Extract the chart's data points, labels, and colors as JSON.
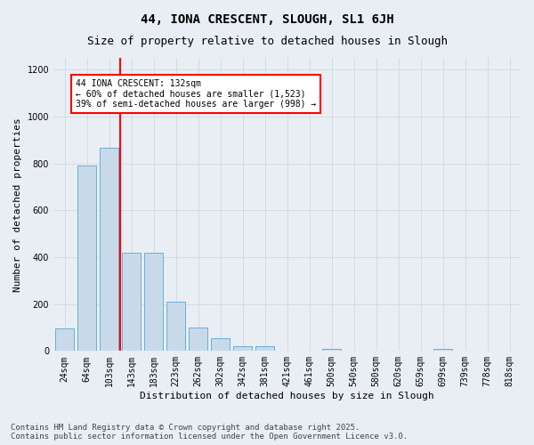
{
  "title": "44, IONA CRESCENT, SLOUGH, SL1 6JH",
  "subtitle": "Size of property relative to detached houses in Slough",
  "xlabel": "Distribution of detached houses by size in Slough",
  "ylabel": "Number of detached properties",
  "categories": [
    "24sqm",
    "64sqm",
    "103sqm",
    "143sqm",
    "183sqm",
    "223sqm",
    "262sqm",
    "302sqm",
    "342sqm",
    "381sqm",
    "421sqm",
    "461sqm",
    "500sqm",
    "540sqm",
    "580sqm",
    "620sqm",
    "659sqm",
    "699sqm",
    "739sqm",
    "778sqm",
    "818sqm"
  ],
  "values": [
    95,
    790,
    865,
    420,
    420,
    210,
    100,
    55,
    20,
    20,
    0,
    0,
    10,
    0,
    0,
    0,
    0,
    10,
    0,
    0,
    0
  ],
  "bar_color": "#c8daea",
  "bar_edge_color": "#6aaed6",
  "grid_color": "#d0d8e0",
  "bg_color": "#e8eef4",
  "vline_color": "red",
  "vline_x_index": 2.5,
  "annotation_text": "44 IONA CRESCENT: 132sqm\n← 60% of detached houses are smaller (1,523)\n39% of semi-detached houses are larger (998) →",
  "ylim": [
    0,
    1250
  ],
  "yticks": [
    0,
    200,
    400,
    600,
    800,
    1000,
    1200
  ],
  "footer_line1": "Contains HM Land Registry data © Crown copyright and database right 2025.",
  "footer_line2": "Contains public sector information licensed under the Open Government Licence v3.0.",
  "title_fontsize": 10,
  "subtitle_fontsize": 9,
  "axis_label_fontsize": 8,
  "tick_fontsize": 7,
  "annotation_fontsize": 7,
  "footer_fontsize": 6.5
}
